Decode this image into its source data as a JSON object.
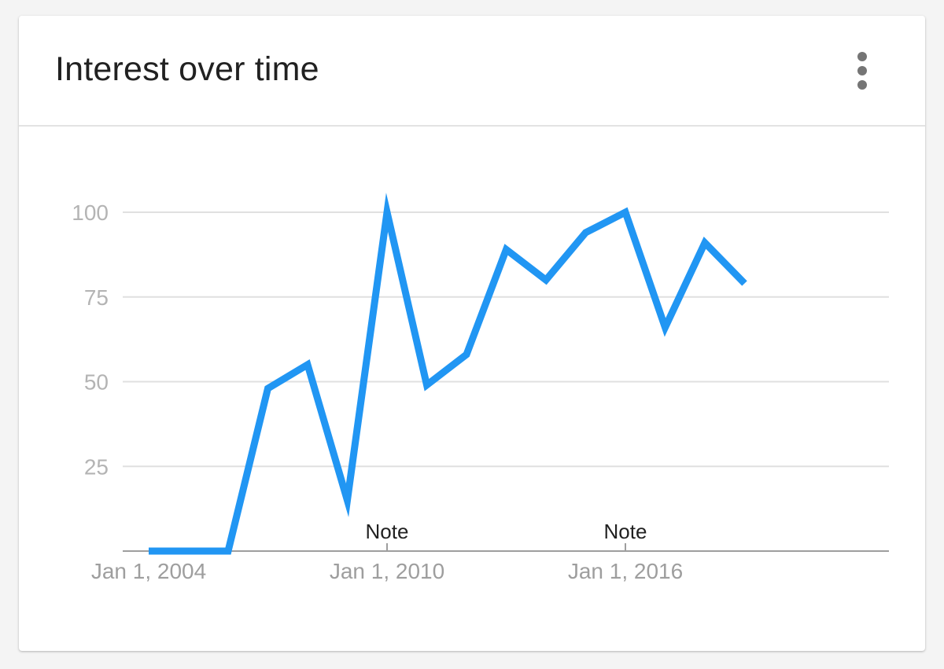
{
  "card": {
    "title": "Interest over time",
    "menu_icon": "more-vert-icon"
  },
  "colors": {
    "line": "#2196f3",
    "gridline": "#e0e0e0",
    "axis": "#9e9e9e",
    "tick_label": "#b4b4b4"
  },
  "chart_data": {
    "type": "line",
    "title": "",
    "xlabel": "",
    "ylabel": "",
    "ylim": [
      0,
      100
    ],
    "yticks": [
      25,
      50,
      75,
      100
    ],
    "xticks": [
      {
        "year": 2004,
        "label": "Jan 1, 2004"
      },
      {
        "year": 2010,
        "label": "Jan 1, 2010"
      },
      {
        "year": 2016,
        "label": "Jan 1, 2016"
      }
    ],
    "grid": true,
    "series": [
      {
        "x": [
          2004,
          2005,
          2006,
          2007,
          2008,
          2009,
          2010,
          2011,
          2012,
          2013,
          2014,
          2015,
          2016,
          2017,
          2018,
          2019
        ],
        "values": [
          0,
          0,
          0,
          48,
          55,
          15,
          100,
          49,
          58,
          89,
          80,
          94,
          100,
          66,
          91,
          79
        ]
      }
    ],
    "annotations": [
      {
        "label": "Note",
        "year": 2010
      },
      {
        "label": "Note",
        "year": 2016
      }
    ]
  }
}
